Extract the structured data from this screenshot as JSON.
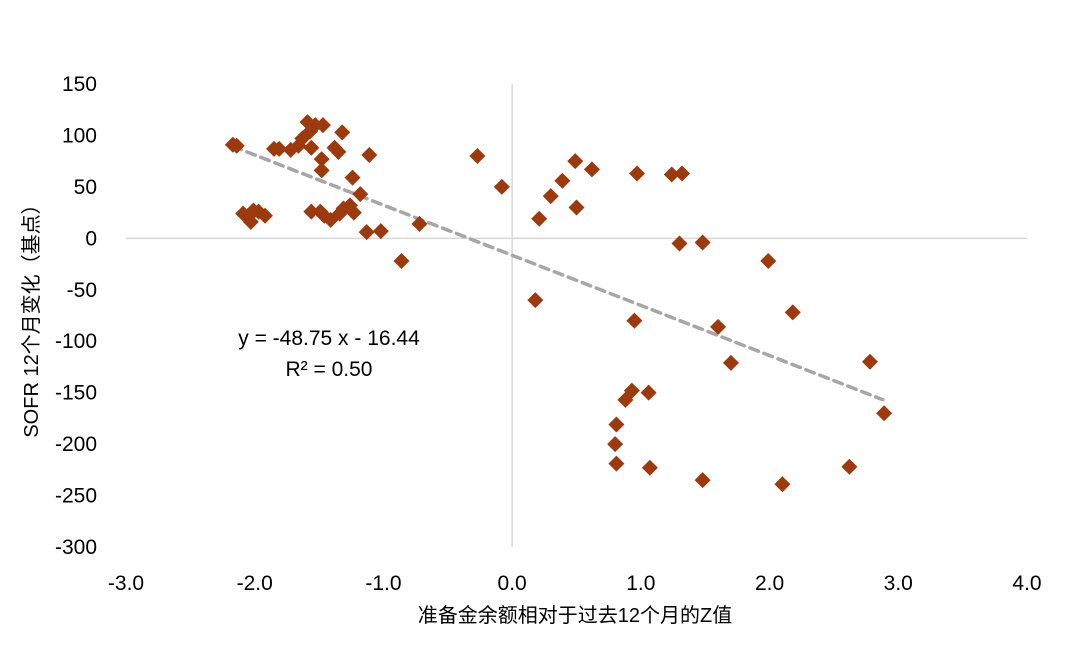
{
  "chart_data": {
    "type": "scatter",
    "title": "",
    "xlabel": "准备金余额相对于过去12个月的Z值",
    "ylabel": "SOFR 12个月变化（基点）",
    "xlim": [
      -3.0,
      4.0
    ],
    "ylim": [
      -300,
      150
    ],
    "x_ticks": [
      -3.0,
      -2.0,
      -1.0,
      0.0,
      1.0,
      2.0,
      3.0,
      4.0
    ],
    "y_ticks": [
      150,
      100,
      50,
      0,
      -50,
      -100,
      -150,
      -200,
      -250,
      -300
    ],
    "x_tick_labels": [
      "-3.0",
      "-2.0",
      "-1.0",
      "0.0",
      "1.0",
      "2.0",
      "3.0",
      "4.0"
    ],
    "y_tick_labels": [
      "150",
      "100",
      "50",
      "0",
      "-50",
      "-100",
      "-150",
      "-200",
      "-250",
      "-300"
    ],
    "grid": false,
    "legend": "none",
    "marker_color": "#9C3A0E",
    "trendline_color": "#A6A6A6",
    "trendline": {
      "slope": -48.75,
      "intercept": -16.44,
      "x_range": [
        -2.17,
        2.88
      ],
      "equation_text": "y = -48.75 x - 16.44",
      "r2_text": "R² = 0.50"
    },
    "points": [
      [
        -2.17,
        91
      ],
      [
        -2.14,
        90
      ],
      [
        -1.85,
        87
      ],
      [
        -1.81,
        87
      ],
      [
        -1.72,
        86
      ],
      [
        -1.66,
        90
      ],
      [
        -1.63,
        97
      ],
      [
        -1.59,
        113
      ],
      [
        -1.57,
        104
      ],
      [
        -1.56,
        88
      ],
      [
        -1.53,
        110
      ],
      [
        -1.47,
        110
      ],
      [
        -1.38,
        88
      ],
      [
        -1.35,
        84
      ],
      [
        -1.32,
        103
      ],
      [
        -1.48,
        77
      ],
      [
        -1.48,
        66
      ],
      [
        -1.24,
        59
      ],
      [
        -1.11,
        81
      ],
      [
        -2.09,
        24
      ],
      [
        -2.05,
        21
      ],
      [
        -2.03,
        16
      ],
      [
        -2.01,
        27
      ],
      [
        -1.97,
        26
      ],
      [
        -1.92,
        22
      ],
      [
        -1.56,
        26
      ],
      [
        -1.49,
        26
      ],
      [
        -1.46,
        22
      ],
      [
        -1.41,
        18
      ],
      [
        -1.34,
        24
      ],
      [
        -1.31,
        29
      ],
      [
        -1.26,
        32
      ],
      [
        -1.23,
        25
      ],
      [
        -1.18,
        43
      ],
      [
        -1.13,
        6
      ],
      [
        -1.02,
        7
      ],
      [
        -0.86,
        -22
      ],
      [
        -0.72,
        14
      ],
      [
        -0.27,
        80
      ],
      [
        -0.08,
        50
      ],
      [
        0.18,
        -60
      ],
      [
        0.21,
        19
      ],
      [
        0.3,
        41
      ],
      [
        0.39,
        56
      ],
      [
        0.49,
        75
      ],
      [
        0.5,
        30
      ],
      [
        0.62,
        67
      ],
      [
        0.97,
        63
      ],
      [
        1.24,
        62
      ],
      [
        1.32,
        63
      ],
      [
        1.3,
        -5
      ],
      [
        1.48,
        -4
      ],
      [
        1.99,
        -22
      ],
      [
        2.18,
        -72
      ],
      [
        1.6,
        -86
      ],
      [
        1.7,
        -121
      ],
      [
        2.78,
        -120
      ],
      [
        2.89,
        -170
      ],
      [
        0.95,
        -80
      ],
      [
        0.93,
        -148
      ],
      [
        0.88,
        -157
      ],
      [
        1.06,
        -150
      ],
      [
        0.81,
        -181
      ],
      [
        0.8,
        -200
      ],
      [
        0.81,
        -219
      ],
      [
        1.07,
        -223
      ],
      [
        1.48,
        -235
      ],
      [
        2.1,
        -239
      ],
      [
        2.62,
        -222
      ]
    ]
  }
}
